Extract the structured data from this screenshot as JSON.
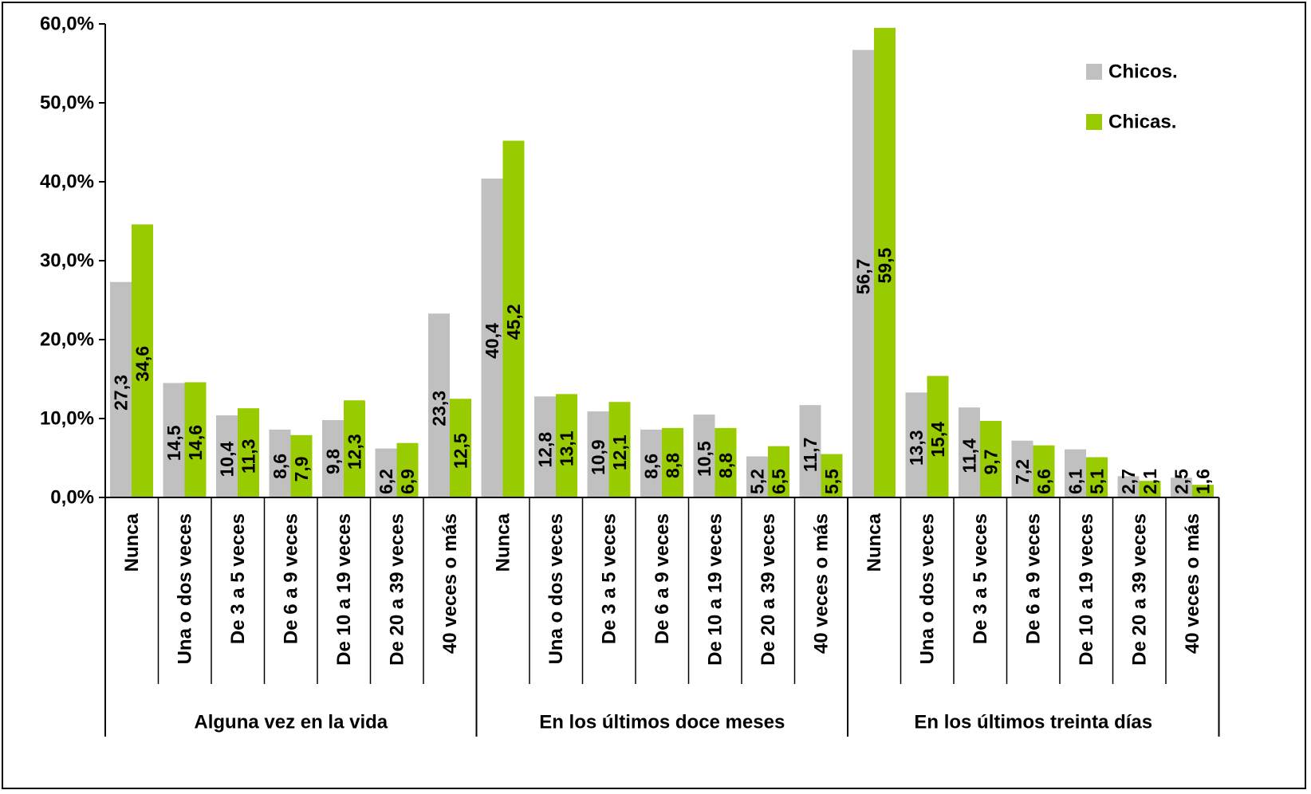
{
  "chart_data": {
    "type": "bar",
    "title": "",
    "xlabel": "",
    "ylabel": "",
    "ylim": [
      0,
      60
    ],
    "y_ticks": [
      "0,0%",
      "10,0%",
      "20,0%",
      "30,0%",
      "40,0%",
      "50,0%",
      "60,0%"
    ],
    "grid": false,
    "legend_position": "top-right",
    "groups": [
      {
        "label": "Alguna vez en la vida",
        "categories": [
          "Nunca",
          "Una o dos veces",
          "De 3 a 5 veces",
          "De 6 a 9 veces",
          "De 10 a 19 veces",
          "De 20 a 39 veces",
          "40 veces o más"
        ]
      },
      {
        "label": "En los últimos doce meses",
        "categories": [
          "Nunca",
          "Una o dos veces",
          "De 3 a 5 veces",
          "De 6 a 9 veces",
          "De 10 a 19 veces",
          "De 20 a 39 veces",
          "40 veces o más"
        ]
      },
      {
        "label": "En los últimos treinta días",
        "categories": [
          "Nunca",
          "Una o dos veces",
          "De 3 a 5 veces",
          "De 6 a 9 veces",
          "De 10 a 19 veces",
          "De 20 a 39 veces",
          "40 veces o más"
        ]
      }
    ],
    "series": [
      {
        "name": "Chicos.",
        "color": "#c0c0c0",
        "values": [
          27.3,
          14.5,
          10.4,
          8.6,
          9.8,
          6.2,
          23.3,
          40.4,
          12.8,
          10.9,
          8.6,
          10.5,
          5.2,
          11.7,
          56.7,
          13.3,
          11.4,
          7.2,
          6.1,
          2.7,
          2.5
        ],
        "labels": [
          "27,3",
          "14,5",
          "10,4",
          "8,6",
          "9,8",
          "6,2",
          "23,3",
          "40,4",
          "12,8",
          "10,9",
          "8,6",
          "10,5",
          "5,2",
          "11,7",
          "56,7",
          "13,3",
          "11,4",
          "7,2",
          "6,1",
          "2,7",
          "2,5"
        ]
      },
      {
        "name": "Chicas.",
        "color": "#99cc00",
        "values": [
          34.6,
          14.6,
          11.3,
          7.9,
          12.3,
          6.9,
          12.5,
          45.2,
          13.1,
          12.1,
          8.8,
          8.8,
          6.5,
          5.5,
          59.5,
          15.4,
          9.7,
          6.6,
          5.1,
          2.1,
          1.6
        ],
        "labels": [
          "34,6",
          "14,6",
          "11,3",
          "7,9",
          "12,3",
          "6,9",
          "12,5",
          "45,2",
          "13,1",
          "12,1",
          "8,8",
          "8,8",
          "6,5",
          "5,5",
          "59,5",
          "15,4",
          "9,7",
          "6,6",
          "5,1",
          "2,1",
          "1,6"
        ]
      }
    ]
  }
}
